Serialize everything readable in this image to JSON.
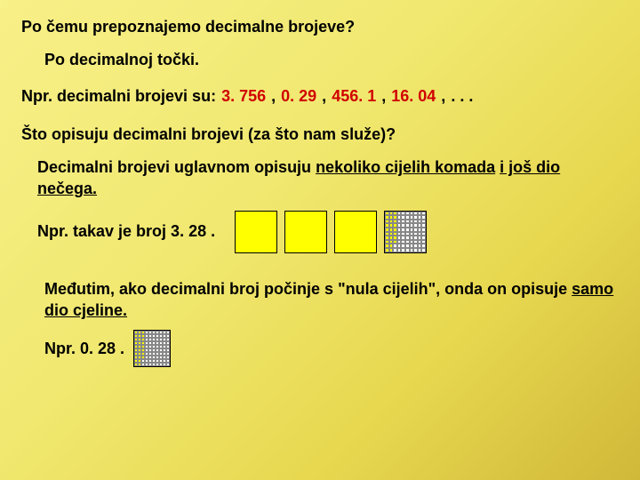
{
  "q1": "Po čemu prepoznajemo decimalne brojeve?",
  "a1": "Po decimalnoj točki.",
  "ex_label": "Npr. decimalni brojevi su:",
  "ex_values": [
    "3. 756",
    "0. 29",
    "456. 1",
    "16. 04"
  ],
  "ex_sep": ",",
  "ex_tail": ". . .",
  "q2": "Što opisuju decimalni brojevi (za što nam služe)?",
  "p1_a": "Decimalni brojevi uglavnom opisuju ",
  "p1_u1": "nekoliko cijelih komada",
  "p1_mid": " ",
  "p1_u2": "i još dio nečega.",
  "ex2_label": "Npr. takav je broj 3. 28  .",
  "boxes": {
    "whole": 3,
    "frac_cells": 28
  },
  "p2_a": "Međutim, ako decimalni broj počinje s \"nula cijelih\", onda on opisuje ",
  "p2_u": "samo dio cjeline.",
  "ex3_label": "Npr.  0. 28  .",
  "frac2_cells": 28,
  "colors": {
    "red": "#d00000",
    "yellow": "#ffff00"
  }
}
